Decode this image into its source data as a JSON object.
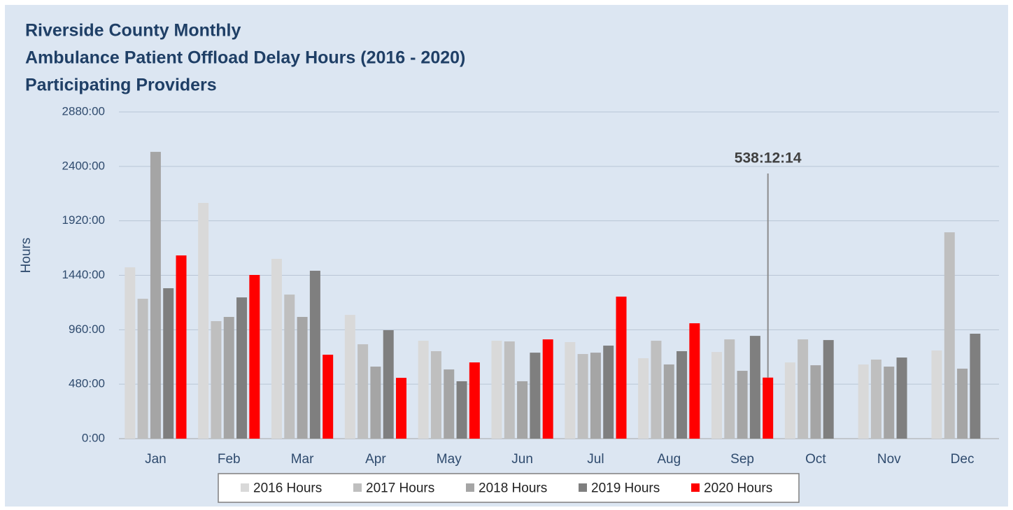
{
  "chart_data": {
    "type": "bar",
    "title": [
      "Riverside County Monthly",
      "Ambulance Patient Offload Delay Hours (2016 - 2020)",
      "Participating Providers"
    ],
    "y_label": "Hours",
    "categories": [
      "Jan",
      "Feb",
      "Mar",
      "Apr",
      "May",
      "Jun",
      "Jul",
      "Aug",
      "Sep",
      "Oct",
      "Nov",
      "Dec"
    ],
    "series": [
      {
        "name": "2016 Hours",
        "color": "#d9d9d9",
        "values": [
          1510,
          2078,
          1585,
          1091,
          863,
          863,
          851,
          709,
          764,
          672,
          654,
          777
        ]
      },
      {
        "name": "2017 Hours",
        "color": "#bfbfbf",
        "values": [
          1233,
          1036,
          1270,
          832,
          771,
          857,
          746,
          863,
          875,
          875,
          697,
          1819
        ]
      },
      {
        "name": "2018 Hours",
        "color": "#a5a5a5",
        "values": [
          2528,
          1073,
          1073,
          635,
          610,
          506,
          758,
          654,
          598,
          647,
          635,
          617
        ]
      },
      {
        "name": "2019 Hours",
        "color": "#7f7f7f",
        "values": [
          1326,
          1245,
          1480,
          956,
          506,
          758,
          820,
          771,
          906,
          869,
          715,
          925
        ]
      },
      {
        "name": "2020 Hours",
        "color": "#ff0000",
        "values": [
          1615,
          1443,
          740,
          536,
          672,
          875,
          1252,
          1017,
          538.2,
          null,
          null,
          null
        ]
      }
    ],
    "ylim": [
      0,
      2880
    ],
    "yticks": [
      {
        "value": 0,
        "label": "0:00"
      },
      {
        "value": 480,
        "label": "480:00"
      },
      {
        "value": 960,
        "label": "960:00"
      },
      {
        "value": 1440,
        "label": "1440:00"
      },
      {
        "value": 1920,
        "label": "1920:00"
      },
      {
        "value": 2400,
        "label": "2400:00"
      },
      {
        "value": 2880,
        "label": "2880:00"
      }
    ],
    "grid": true,
    "legend": "bottom",
    "annotation": {
      "text": "538:12:14",
      "category": "Sep",
      "series": "2020 Hours"
    }
  }
}
